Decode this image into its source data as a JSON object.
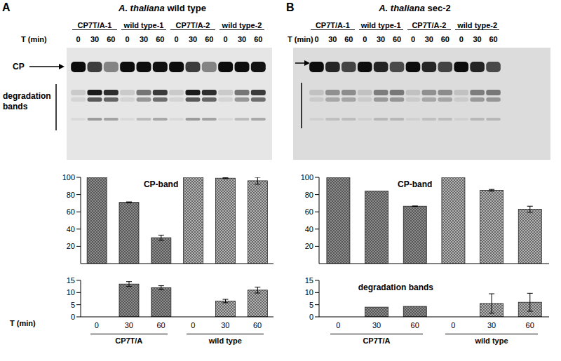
{
  "panels": [
    {
      "label": "A",
      "species": "A. thaliana",
      "strain": "wild type",
      "time_label": "T (min)",
      "lanes": [
        "CP7T/A-1",
        "wild type-1",
        "CP7T/A-2",
        "wild type-2"
      ],
      "times": [
        "0",
        "30",
        "60"
      ],
      "cp_label": "CP",
      "degradation_label": "degradation bands"
    },
    {
      "label": "B",
      "species": "A. thaliana",
      "strain": "sec-2",
      "time_label": "T (min)",
      "lanes": [
        "CP7T/A-1",
        "wild type-1",
        "CP7T/A-2",
        "wild type-2"
      ],
      "times": [
        "0",
        "30",
        "60"
      ]
    }
  ],
  "chart_data": [
    {
      "type": "bar",
      "title": "CP-band",
      "categories": [
        null,
        null,
        null,
        null,
        null,
        null
      ],
      "values": [
        100,
        71,
        30,
        100,
        99,
        96
      ],
      "errors": [
        null,
        0.5,
        3,
        null,
        0.5,
        4
      ],
      "colors": [
        "#8c8c8c",
        "#8c8c8c",
        "#8c8c8c",
        "#b4b4b4",
        "#b4b4b4",
        "#b4b4b4"
      ],
      "ylim": [
        0,
        100
      ],
      "yticks": [
        0,
        20,
        40,
        60,
        80,
        100
      ],
      "tick_labels": "y"
    },
    {
      "type": "bar",
      "categories": [
        "0",
        "30",
        "60",
        "0",
        "30",
        "60"
      ],
      "values": [
        0,
        13.5,
        12,
        0,
        6.5,
        11
      ],
      "errors": [
        null,
        1,
        0.8,
        null,
        0.7,
        1.2
      ],
      "colors": [
        "#8c8c8c",
        "#8c8c8c",
        "#8c8c8c",
        "#b4b4b4",
        "#b4b4b4",
        "#b4b4b4"
      ],
      "ylim": [
        0,
        15
      ],
      "yticks": [
        0,
        5,
        10,
        15
      ],
      "x_label": "T (min)",
      "groups": [
        "CP7T/A",
        "wild type"
      ]
    },
    {
      "type": "bar",
      "title": "CP-band",
      "categories": [
        null,
        null,
        null,
        null,
        null,
        null
      ],
      "values": [
        100,
        84,
        66.5,
        100,
        85,
        63
      ],
      "errors": [
        null,
        null,
        0.3,
        null,
        1,
        3.5
      ],
      "colors": [
        "#8c8c8c",
        "#8c8c8c",
        "#8c8c8c",
        "#b4b4b4",
        "#b4b4b4",
        "#b4b4b4"
      ],
      "ylim": [
        0,
        100
      ],
      "yticks": [
        0,
        20,
        40,
        60,
        80,
        100
      ],
      "tick_labels": "y"
    },
    {
      "type": "bar",
      "title": "degradation bands",
      "categories": [
        "0",
        "30",
        "60",
        "0",
        "30",
        "60"
      ],
      "values": [
        0,
        4,
        4.3,
        0,
        5.5,
        6
      ],
      "errors": [
        null,
        null,
        null,
        null,
        4,
        3.7
      ],
      "colors": [
        "#8c8c8c",
        "#8c8c8c",
        "#8c8c8c",
        "#b4b4b4",
        "#b4b4b4",
        "#b4b4b4"
      ],
      "ylim": [
        0,
        15
      ],
      "yticks": [
        0,
        5,
        10,
        15
      ],
      "groups": [
        "CP7T/A",
        "wild type"
      ]
    }
  ]
}
